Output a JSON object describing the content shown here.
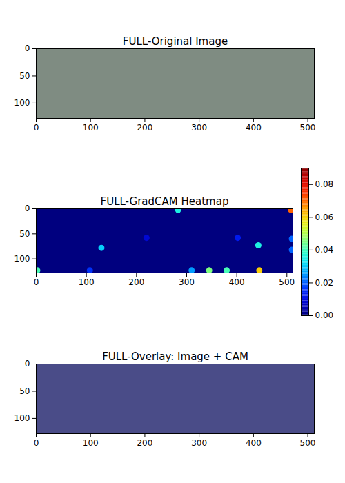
{
  "chart_data": [
    {
      "type": "image",
      "title": "FULL-Original Image",
      "color": "#7f8c82",
      "xlim": [
        0,
        512
      ],
      "ylim": [
        128,
        0
      ],
      "xticks": [
        0,
        100,
        200,
        300,
        400,
        500
      ],
      "yticks": [
        0,
        50,
        100
      ]
    },
    {
      "type": "heatmap",
      "title": "FULL-GradCAM Heatmap",
      "xlim": [
        0,
        512
      ],
      "ylim": [
        128,
        0
      ],
      "xticks": [
        0,
        100,
        200,
        300,
        400,
        500
      ],
      "yticks": [
        0,
        50,
        100
      ],
      "cells": {
        "x": [
          283,
          508,
          130,
          443,
          402,
          510,
          510,
          220,
          2,
          107,
          310,
          345,
          380,
          445
        ],
        "y": [
          2,
          2,
          78,
          73,
          58,
          60,
          82,
          58,
          123,
          123,
          123,
          123,
          123,
          123
        ],
        "values": [
          0.035,
          0.07,
          0.03,
          0.035,
          0.012,
          0.02,
          0.02,
          0.008,
          0.04,
          0.015,
          0.025,
          0.045,
          0.04,
          0.06
        ]
      },
      "colorbar": {
        "range": [
          0,
          0.09
        ],
        "ticks": [
          {
            "value": 0,
            "label": "0.00"
          },
          {
            "value": 0.02,
            "label": "0.02"
          },
          {
            "value": 0.04,
            "label": "0.04"
          },
          {
            "value": 0.06,
            "label": "0.06"
          },
          {
            "value": 0.08,
            "label": "0.08"
          }
        ]
      }
    },
    {
      "type": "image",
      "title": "FULL-Overlay: Image + CAM",
      "color": "#4a4c88",
      "xlim": [
        0,
        512
      ],
      "ylim": [
        128,
        0
      ],
      "xticks": [
        0,
        100,
        200,
        300,
        400,
        500
      ],
      "yticks": [
        0,
        50,
        100
      ]
    }
  ]
}
